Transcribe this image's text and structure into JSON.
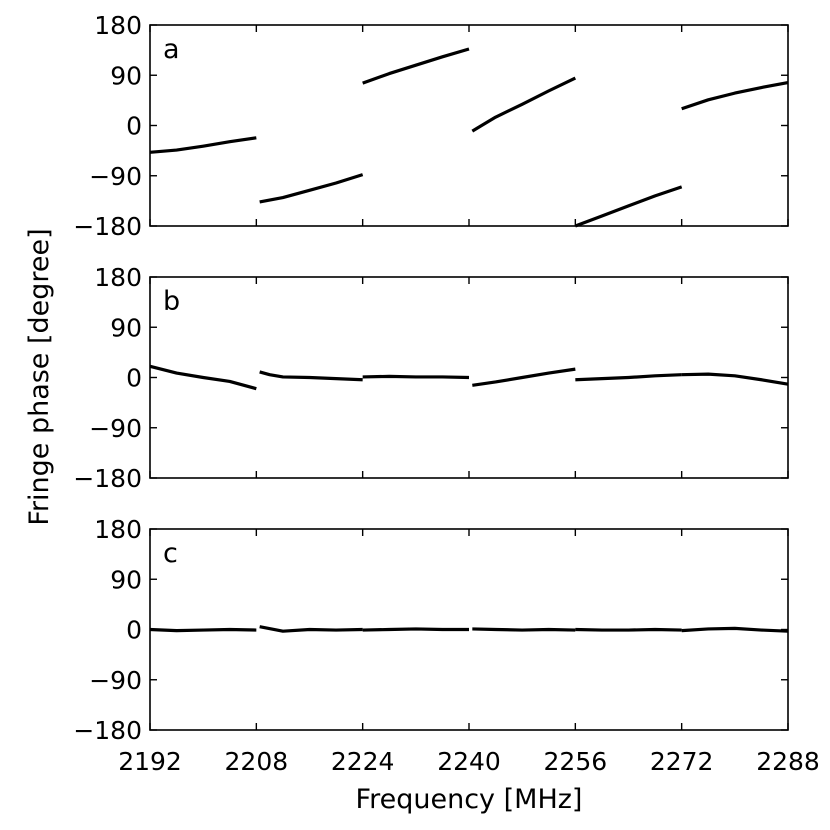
{
  "chart_data": {
    "type": "line",
    "xlabel": "Frequency [MHz]",
    "ylabel": "Fringe phase [degree]",
    "xlim": [
      2192,
      2288
    ],
    "ylim": [
      -180,
      180
    ],
    "xticks": [
      2192,
      2208,
      2224,
      2240,
      2256,
      2272,
      2288
    ],
    "xtick_labels": [
      "2192",
      "2208",
      "2224",
      "2240",
      "2256",
      "2272",
      "2288"
    ],
    "yticks": [
      180,
      90,
      0,
      -90,
      -180
    ],
    "ytick_labels": [
      "180",
      "90",
      "0",
      "−90",
      "−180"
    ],
    "panels": [
      {
        "label": "a",
        "segments": [
          {
            "x": [
              2192,
              2196,
              2200,
              2204,
              2208
            ],
            "y": [
              -48,
              -44,
              -37,
              -29,
              -22
            ]
          },
          {
            "x": [
              2208.5,
              2212,
              2216,
              2220,
              2224
            ],
            "y": [
              -137,
              -129,
              -116,
              -103,
              -88
            ]
          },
          {
            "x": [
              2224,
              2228,
              2232,
              2236,
              2240
            ],
            "y": [
              76,
              93,
              108,
              123,
              137
            ]
          },
          {
            "x": [
              2240.5,
              2244,
              2248,
              2252,
              2256
            ],
            "y": [
              -10,
              15,
              38,
              62,
              85
            ]
          },
          {
            "x": [
              2256,
              2260,
              2264,
              2268,
              2272
            ],
            "y": [
              -180,
              -162,
              -144,
              -126,
              -110
            ]
          },
          {
            "x": [
              2272,
              2276,
              2280,
              2284,
              2288
            ],
            "y": [
              30,
              46,
              58,
              68,
              77
            ]
          }
        ]
      },
      {
        "label": "b",
        "segments": [
          {
            "x": [
              2192,
              2196,
              2200,
              2204,
              2208
            ],
            "y": [
              20,
              8,
              0,
              -7,
              -20
            ]
          },
          {
            "x": [
              2208.5,
              2210,
              2212,
              2216,
              2220,
              2224
            ],
            "y": [
              10,
              5,
              1,
              0,
              -2,
              -4
            ]
          },
          {
            "x": [
              2224,
              2228,
              2232,
              2236,
              2240
            ],
            "y": [
              1,
              2,
              1,
              1,
              0
            ]
          },
          {
            "x": [
              2240.5,
              2244,
              2248,
              2252,
              2256
            ],
            "y": [
              -14,
              -8,
              0,
              8,
              15
            ]
          },
          {
            "x": [
              2256,
              2260,
              2264,
              2268,
              2272
            ],
            "y": [
              -4,
              -2,
              0,
              3,
              5
            ]
          },
          {
            "x": [
              2272,
              2276,
              2280,
              2284,
              2288
            ],
            "y": [
              5,
              6,
              3,
              -4,
              -12
            ]
          }
        ]
      },
      {
        "label": "c",
        "segments": [
          {
            "x": [
              2192,
              2196,
              2200,
              2204,
              2208
            ],
            "y": [
              0,
              -2,
              -1,
              0,
              -1
            ]
          },
          {
            "x": [
              2208.5,
              2212,
              2216,
              2220,
              2224
            ],
            "y": [
              5,
              -3,
              0,
              -1,
              0
            ]
          },
          {
            "x": [
              2224,
              2228,
              2232,
              2236,
              2240
            ],
            "y": [
              -1,
              0,
              1,
              0,
              0
            ]
          },
          {
            "x": [
              2240.5,
              2244,
              2248,
              2252,
              2256
            ],
            "y": [
              1,
              0,
              -1,
              0,
              -1
            ]
          },
          {
            "x": [
              2256,
              2260,
              2264,
              2268,
              2272
            ],
            "y": [
              0,
              -1,
              -1,
              0,
              -1
            ]
          },
          {
            "x": [
              2272,
              2276,
              2280,
              2284,
              2288
            ],
            "y": [
              -2,
              1,
              2,
              -1,
              -3
            ]
          }
        ]
      }
    ]
  }
}
